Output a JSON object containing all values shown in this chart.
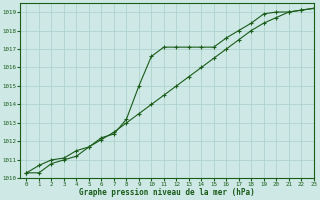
{
  "title": "Graphe pression niveau de la mer (hPa)",
  "line1_x": [
    0,
    1,
    2,
    3,
    4,
    5,
    6,
    7,
    8,
    9,
    10,
    11,
    12,
    13,
    14,
    15,
    16,
    17,
    18,
    19,
    20,
    21,
    22,
    23
  ],
  "line1_y": [
    1010.3,
    1010.3,
    1010.8,
    1011.0,
    1011.2,
    1011.7,
    1012.2,
    1012.4,
    1013.2,
    1015.0,
    1016.6,
    1017.1,
    1017.1,
    1017.1,
    1017.1,
    1017.1,
    1017.6,
    1018.0,
    1018.4,
    1018.9,
    1019.0,
    1019.0,
    1019.1,
    1019.2
  ],
  "line2_x": [
    0,
    1,
    2,
    3,
    4,
    5,
    6,
    7,
    8,
    9,
    10,
    11,
    12,
    13,
    14,
    15,
    16,
    17,
    18,
    19,
    20,
    21,
    22,
    23
  ],
  "line2_y": [
    1010.3,
    1010.7,
    1011.0,
    1011.1,
    1011.5,
    1011.7,
    1012.1,
    1012.5,
    1013.0,
    1013.5,
    1014.0,
    1014.5,
    1015.0,
    1015.5,
    1016.0,
    1016.5,
    1017.0,
    1017.5,
    1018.0,
    1018.4,
    1018.7,
    1019.0,
    1019.1,
    1019.2
  ],
  "ylim": [
    1010,
    1019.5
  ],
  "xlim": [
    -0.5,
    23
  ],
  "yticks": [
    1010,
    1011,
    1012,
    1013,
    1014,
    1015,
    1016,
    1017,
    1018,
    1019
  ],
  "xticks": [
    0,
    1,
    2,
    3,
    4,
    5,
    6,
    7,
    8,
    9,
    10,
    11,
    12,
    13,
    14,
    15,
    16,
    17,
    18,
    19,
    20,
    21,
    22,
    23
  ],
  "line_color": "#1a5c1a",
  "bg_color": "#cde8e5",
  "grid_color": "#aacfcc",
  "marker": "+"
}
